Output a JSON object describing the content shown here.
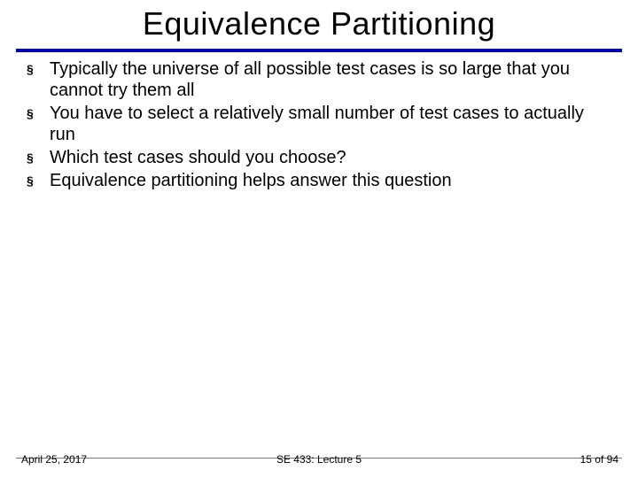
{
  "title": "Equivalence Partitioning",
  "title_fontsize": 36,
  "title_color": "#000000",
  "rule_color": "#0000c8",
  "background_color": "#ffffff",
  "body_fontsize": 20,
  "body_color": "#000000",
  "bullets": [
    {
      "text": "Typically the universe of all possible test cases is so large that you cannot try them all"
    },
    {
      "text": "You have to select a relatively small number of test cases to actually run"
    },
    {
      "text": "Which test cases should you choose?"
    },
    {
      "text": "Equivalence partitioning helps answer this question"
    }
  ],
  "bullet_marker": "§",
  "footer": {
    "left": "April 25, 2017",
    "center": "SE 433: Lecture 5",
    "right": "15 of 94",
    "fontsize": 12,
    "color": "#000000",
    "rule_color": "#777777"
  }
}
